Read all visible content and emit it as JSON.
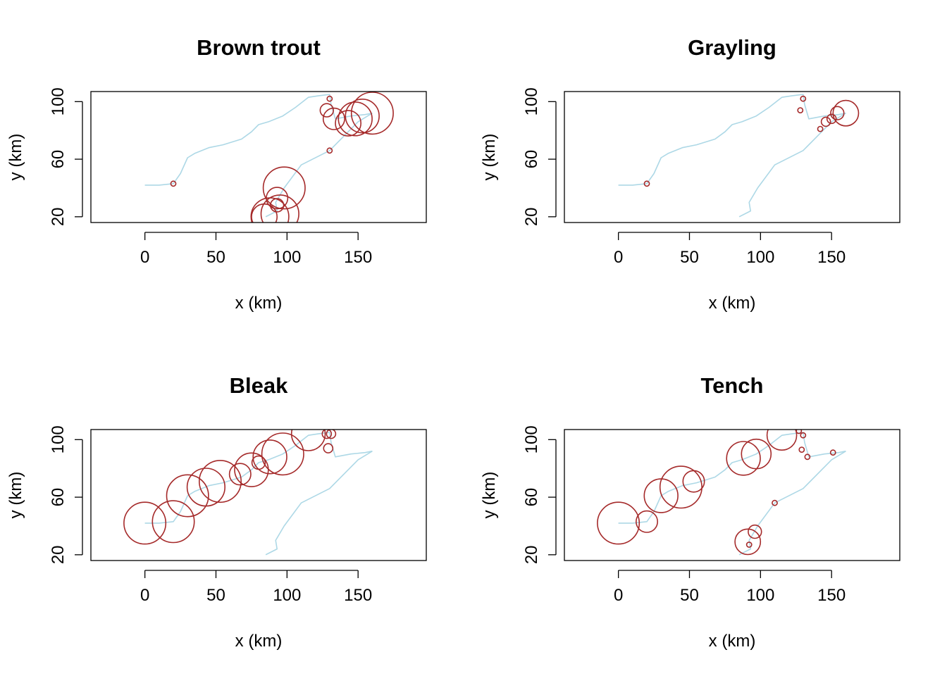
{
  "colors": {
    "river": "#add8e6",
    "bubble": "#a52a2a",
    "axis": "#000000"
  },
  "chart_data": [
    {
      "type": "scatter",
      "title": "Brown trout",
      "xlabel": "x (km)",
      "ylabel": "y (km)",
      "xlim": [
        -38,
        198
      ],
      "ylim": [
        16,
        107
      ],
      "xticks": [
        0,
        50,
        100,
        150
      ],
      "yticks": [
        20,
        60,
        100
      ],
      "grid": false,
      "points": [
        {
          "x": 20,
          "y": 43,
          "size": 1
        },
        {
          "x": 130,
          "y": 102,
          "size": 1
        },
        {
          "x": 130,
          "y": 66,
          "size": 1
        },
        {
          "x": 128,
          "y": 94,
          "size": 3
        },
        {
          "x": 133,
          "y": 88,
          "size": 5
        },
        {
          "x": 143,
          "y": 85,
          "size": 6
        },
        {
          "x": 148,
          "y": 88,
          "size": 8
        },
        {
          "x": 153,
          "y": 90,
          "size": 8
        },
        {
          "x": 160,
          "y": 92,
          "size": 10
        },
        {
          "x": 98,
          "y": 40,
          "size": 10
        },
        {
          "x": 93,
          "y": 33,
          "size": 5
        },
        {
          "x": 93,
          "y": 28,
          "size": 3
        },
        {
          "x": 95,
          "y": 22,
          "size": 9
        },
        {
          "x": 88,
          "y": 20,
          "size": 9
        },
        {
          "x": 84,
          "y": 20,
          "size": 6
        }
      ]
    },
    {
      "type": "scatter",
      "title": "Grayling",
      "xlabel": "x (km)",
      "ylabel": "y (km)",
      "xlim": [
        -38,
        198
      ],
      "ylim": [
        16,
        107
      ],
      "xticks": [
        0,
        50,
        100,
        150
      ],
      "yticks": [
        20,
        60,
        100
      ],
      "grid": false,
      "points": [
        {
          "x": 20,
          "y": 43,
          "size": 1
        },
        {
          "x": 130,
          "y": 102,
          "size": 1
        },
        {
          "x": 128,
          "y": 94,
          "size": 1
        },
        {
          "x": 142,
          "y": 81,
          "size": 1
        },
        {
          "x": 146,
          "y": 86,
          "size": 2
        },
        {
          "x": 150,
          "y": 88,
          "size": 2
        },
        {
          "x": 154,
          "y": 92,
          "size": 3
        },
        {
          "x": 160,
          "y": 92,
          "size": 6
        }
      ]
    },
    {
      "type": "scatter",
      "title": "Bleak",
      "xlabel": "x (km)",
      "ylabel": "y (km)",
      "xlim": [
        -38,
        198
      ],
      "ylim": [
        16,
        107
      ],
      "xticks": [
        0,
        50,
        100,
        150
      ],
      "yticks": [
        20,
        60,
        100
      ],
      "grid": false,
      "points": [
        {
          "x": 0,
          "y": 42,
          "size": 10
        },
        {
          "x": 20,
          "y": 43,
          "size": 10
        },
        {
          "x": 30,
          "y": 61,
          "size": 10
        },
        {
          "x": 43,
          "y": 67,
          "size": 9
        },
        {
          "x": 53,
          "y": 71,
          "size": 10
        },
        {
          "x": 67,
          "y": 76,
          "size": 5
        },
        {
          "x": 75,
          "y": 79,
          "size": 8
        },
        {
          "x": 80,
          "y": 84,
          "size": 3
        },
        {
          "x": 88,
          "y": 88,
          "size": 8
        },
        {
          "x": 97,
          "y": 90,
          "size": 10
        },
        {
          "x": 115,
          "y": 104,
          "size": 8
        },
        {
          "x": 128,
          "y": 104,
          "size": 2
        },
        {
          "x": 131,
          "y": 104,
          "size": 2
        },
        {
          "x": 129,
          "y": 94,
          "size": 2
        }
      ]
    },
    {
      "type": "scatter",
      "title": "Tench",
      "xlabel": "x (km)",
      "ylabel": "y (km)",
      "xlim": [
        -38,
        198
      ],
      "ylim": [
        16,
        107
      ],
      "xticks": [
        0,
        50,
        100,
        150
      ],
      "yticks": [
        20,
        60,
        100
      ],
      "grid": false,
      "points": [
        {
          "x": 0,
          "y": 42,
          "size": 10
        },
        {
          "x": 20,
          "y": 43,
          "size": 5
        },
        {
          "x": 30,
          "y": 61,
          "size": 8
        },
        {
          "x": 44,
          "y": 67,
          "size": 10
        },
        {
          "x": 53,
          "y": 71,
          "size": 5
        },
        {
          "x": 88,
          "y": 87,
          "size": 8
        },
        {
          "x": 97,
          "y": 90,
          "size": 7
        },
        {
          "x": 115,
          "y": 103,
          "size": 7
        },
        {
          "x": 127,
          "y": 106,
          "size": 1
        },
        {
          "x": 130,
          "y": 103,
          "size": 1
        },
        {
          "x": 129,
          "y": 93,
          "size": 1
        },
        {
          "x": 133,
          "y": 88,
          "size": 1
        },
        {
          "x": 151,
          "y": 91,
          "size": 1
        },
        {
          "x": 110,
          "y": 56,
          "size": 1
        },
        {
          "x": 96,
          "y": 36,
          "size": 3
        },
        {
          "x": 91,
          "y": 29,
          "size": 6
        },
        {
          "x": 92,
          "y": 27,
          "size": 1
        }
      ]
    }
  ],
  "river_network": {
    "main": [
      [
        0,
        42
      ],
      [
        10,
        42
      ],
      [
        20,
        43
      ],
      [
        25,
        50
      ],
      [
        30,
        61
      ],
      [
        35,
        64
      ],
      [
        45,
        68
      ],
      [
        55,
        70
      ],
      [
        68,
        74
      ],
      [
        75,
        79
      ],
      [
        80,
        84
      ],
      [
        87,
        86
      ],
      [
        97,
        90
      ],
      [
        106,
        96
      ],
      [
        115,
        103
      ],
      [
        122,
        104
      ],
      [
        130,
        105
      ],
      [
        131,
        98
      ],
      [
        134,
        88
      ],
      [
        145,
        90
      ],
      [
        155,
        91
      ],
      [
        160,
        92
      ]
    ],
    "branch": [
      [
        85,
        20
      ],
      [
        93,
        24
      ],
      [
        92,
        30
      ],
      [
        98,
        40
      ],
      [
        110,
        56
      ],
      [
        130,
        66
      ],
      [
        150,
        86
      ],
      [
        160,
        92
      ]
    ]
  }
}
